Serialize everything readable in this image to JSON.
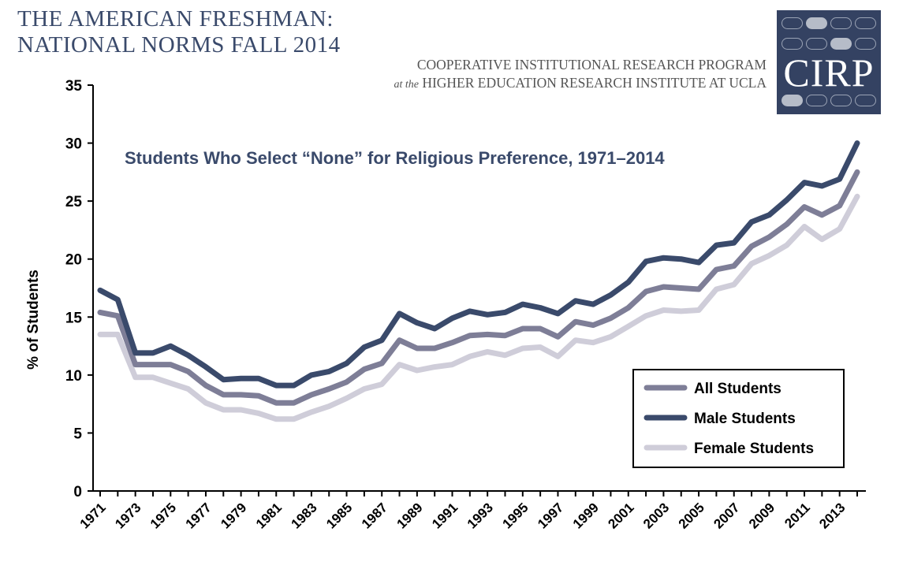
{
  "header": {
    "title_line1": "THE AMERICAN FRESHMAN:",
    "title_line2": "NATIONAL NORMS FALL 2014",
    "org_line1": "COOPERATIVE INSTITUTIONAL RESEARCH PROGRAM",
    "org_line2_prefix": "at the",
    "org_line2": "HIGHER EDUCATION RESEARCH INSTITUTE AT UCLA",
    "logo_text": "CIRP"
  },
  "colors": {
    "all": "#7e7e97",
    "male": "#3a4a6b",
    "female": "#cfcdd9",
    "title": "#3a4a6b",
    "logo_bg": "#344262"
  },
  "chart_data": {
    "type": "line",
    "title": "Students Who Select “None” for Religious Preference, 1971–2014",
    "xlabel": "",
    "ylabel": "% of Students",
    "ylim": [
      0,
      35
    ],
    "yticks": [
      "0",
      "5",
      "10",
      "15",
      "20",
      "25",
      "30",
      "35"
    ],
    "xticks": [
      "1971",
      "1973",
      "1975",
      "1977",
      "1979",
      "1981",
      "1983",
      "1985",
      "1987",
      "1989",
      "1991",
      "1993",
      "1995",
      "1997",
      "1999",
      "2001",
      "2003",
      "2005",
      "2007",
      "2009",
      "2011",
      "2013"
    ],
    "x": [
      1971,
      1972,
      1973,
      1974,
      1975,
      1976,
      1977,
      1978,
      1979,
      1980,
      1981,
      1982,
      1983,
      1984,
      1985,
      1986,
      1987,
      1988,
      1989,
      1990,
      1991,
      1992,
      1993,
      1994,
      1995,
      1996,
      1997,
      1998,
      1999,
      2000,
      2001,
      2002,
      2003,
      2004,
      2005,
      2006,
      2007,
      2008,
      2009,
      2010,
      2011,
      2012,
      2013,
      2014
    ],
    "legend_position": "bottom-right",
    "series": [
      {
        "name": "All Students",
        "values": [
          15.4,
          15.1,
          10.9,
          10.9,
          10.9,
          10.3,
          9.1,
          8.3,
          8.3,
          8.2,
          7.6,
          7.6,
          8.3,
          8.8,
          9.4,
          10.5,
          11.0,
          13.0,
          12.3,
          12.3,
          12.8,
          13.4,
          13.5,
          13.4,
          14.0,
          14.0,
          13.3,
          14.6,
          14.3,
          14.9,
          15.8,
          17.2,
          17.6,
          17.5,
          17.4,
          19.1,
          19.4,
          21.1,
          21.9,
          23.0,
          24.5,
          23.8,
          24.6,
          27.5
        ]
      },
      {
        "name": "Male Students",
        "values": [
          17.3,
          16.5,
          11.9,
          11.9,
          12.5,
          11.7,
          10.7,
          9.6,
          9.7,
          9.7,
          9.1,
          9.1,
          10.0,
          10.3,
          11.0,
          12.4,
          13.0,
          15.3,
          14.5,
          14.0,
          14.9,
          15.5,
          15.2,
          15.4,
          16.1,
          15.8,
          15.3,
          16.4,
          16.1,
          16.9,
          18.0,
          19.8,
          20.1,
          20.0,
          19.7,
          21.2,
          21.4,
          23.2,
          23.8,
          25.1,
          26.6,
          26.3,
          26.9,
          30.0
        ]
      },
      {
        "name": "Female Students",
        "values": [
          13.5,
          13.5,
          9.8,
          9.8,
          9.3,
          8.8,
          7.6,
          7.0,
          7.0,
          6.7,
          6.2,
          6.2,
          6.8,
          7.3,
          8.0,
          8.8,
          9.2,
          10.9,
          10.4,
          10.7,
          10.9,
          11.6,
          12.0,
          11.7,
          12.3,
          12.4,
          11.6,
          13.0,
          12.8,
          13.3,
          14.2,
          15.1,
          15.6,
          15.5,
          15.6,
          17.4,
          17.8,
          19.6,
          20.3,
          21.2,
          22.8,
          21.7,
          22.6,
          25.4
        ]
      }
    ]
  }
}
